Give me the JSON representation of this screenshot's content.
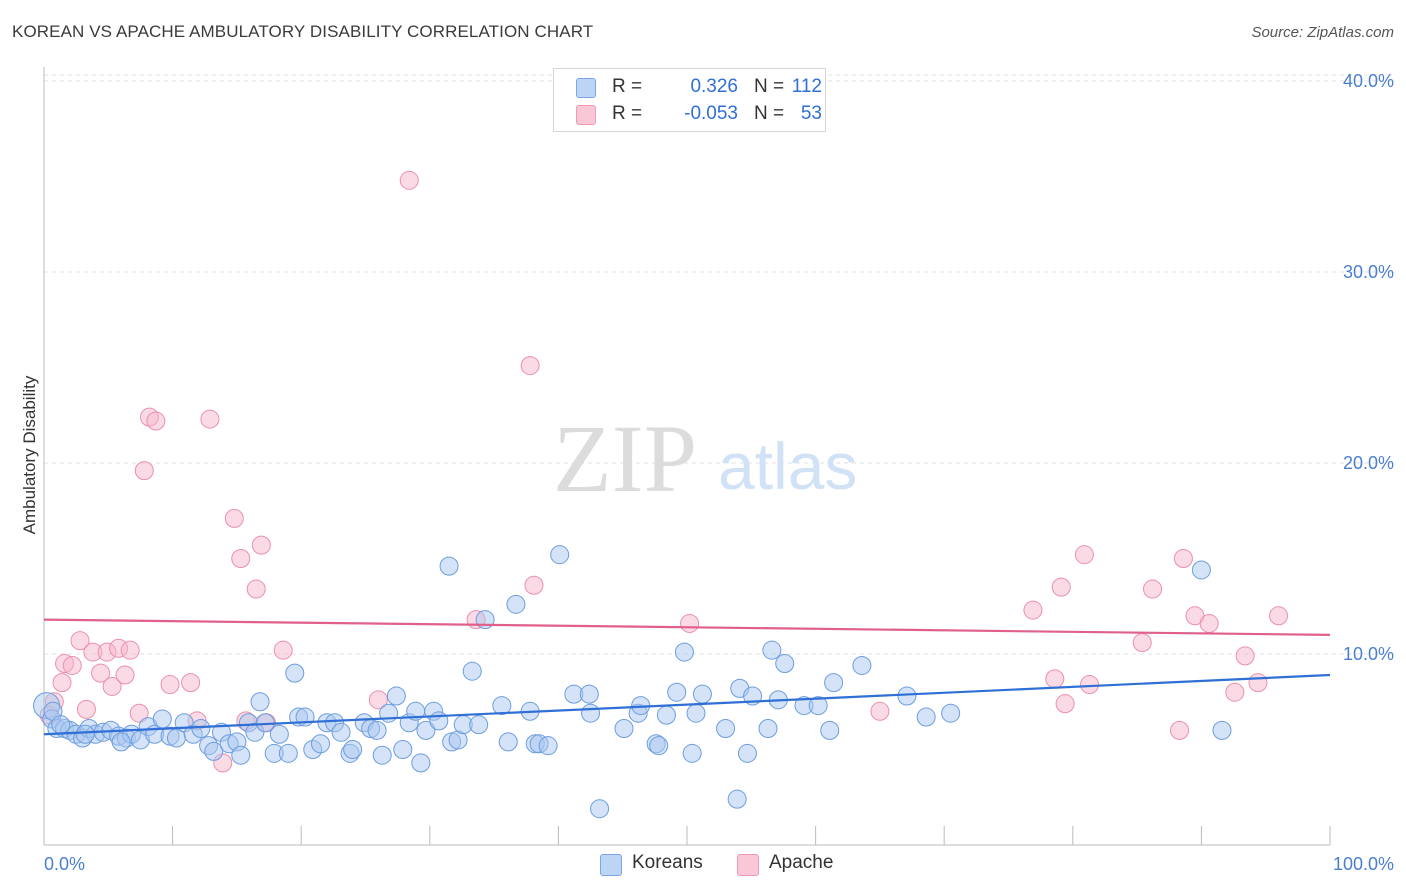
{
  "header": {
    "title": "KOREAN VS APACHE AMBULATORY DISABILITY CORRELATION CHART",
    "source": "Source: ZipAtlas.com"
  },
  "watermark": {
    "zip": "ZIP",
    "atlas": "atlas"
  },
  "legend_top": {
    "rows": [
      {
        "r_label": "R =",
        "r_value": "0.326",
        "n_label": "N =",
        "n_value": "112"
      },
      {
        "r_label": "R =",
        "r_value": "-0.053",
        "n_label": "N =",
        "n_value": "53"
      }
    ]
  },
  "legend_bottom": {
    "items": [
      "Koreans",
      "Apache"
    ]
  },
  "colors": {
    "koreans_fill": "#a9c8f0",
    "koreans_stroke": "#6d9de0",
    "koreans_line": "#2f6fd6",
    "apache_fill": "#f6b8cb",
    "apache_stroke": "#ec8fab",
    "apache_line": "#e0608b",
    "grid": "#e2e2e2",
    "tick_text": "#4a7fd0"
  },
  "chart_data": {
    "type": "scatter",
    "title": "KOREAN VS APACHE AMBULATORY DISABILITY CORRELATION CHART",
    "xlabel": "",
    "ylabel": "Ambulatory Disability",
    "xlim": [
      0,
      100
    ],
    "ylim": [
      0,
      42
    ],
    "x_tick_labels": [
      "0.0%",
      "100.0%"
    ],
    "y_ticks": [
      10,
      20,
      30,
      40
    ],
    "y_tick_labels": [
      "10.0%",
      "20.0%",
      "30.0%",
      "40.0%"
    ],
    "grid": "horizontal dashed",
    "legend_position": "top-center and bottom",
    "series": [
      {
        "name": "Koreans",
        "r": 0.326,
        "n": 112,
        "trend": {
          "x": [
            0,
            100
          ],
          "y": [
            5.8,
            8.9
          ]
        },
        "points": [
          [
            0.2,
            7.3
          ],
          [
            0.6,
            6.6
          ],
          [
            1.0,
            6.1
          ],
          [
            1.6,
            6.1
          ],
          [
            2.0,
            6.0
          ],
          [
            2.5,
            5.8
          ],
          [
            3.0,
            5.6
          ],
          [
            3.5,
            6.1
          ],
          [
            4.0,
            5.8
          ],
          [
            4.6,
            5.9
          ],
          [
            5.2,
            6.0
          ],
          [
            5.8,
            5.7
          ],
          [
            6.4,
            5.6
          ],
          [
            6.8,
            5.8
          ],
          [
            7.5,
            5.5
          ],
          [
            8.1,
            6.2
          ],
          [
            8.6,
            5.8
          ],
          [
            9.2,
            6.6
          ],
          [
            9.8,
            5.7
          ],
          [
            10.3,
            5.6
          ],
          [
            10.9,
            6.4
          ],
          [
            11.6,
            5.8
          ],
          [
            12.2,
            6.1
          ],
          [
            12.8,
            5.2
          ],
          [
            13.2,
            4.9
          ],
          [
            13.8,
            5.9
          ],
          [
            14.4,
            5.3
          ],
          [
            15.0,
            5.4
          ],
          [
            15.3,
            4.7
          ],
          [
            15.9,
            6.4
          ],
          [
            16.4,
            5.9
          ],
          [
            16.8,
            7.5
          ],
          [
            17.2,
            6.4
          ],
          [
            17.9,
            4.8
          ],
          [
            18.3,
            5.8
          ],
          [
            19.0,
            4.8
          ],
          [
            19.5,
            9.0
          ],
          [
            19.8,
            6.7
          ],
          [
            20.3,
            6.7
          ],
          [
            20.9,
            5.0
          ],
          [
            21.5,
            5.3
          ],
          [
            22.0,
            6.4
          ],
          [
            22.6,
            6.4
          ],
          [
            23.1,
            5.9
          ],
          [
            23.8,
            4.8
          ],
          [
            24.0,
            5.0
          ],
          [
            24.9,
            6.4
          ],
          [
            25.4,
            6.1
          ],
          [
            25.9,
            6.0
          ],
          [
            26.3,
            4.7
          ],
          [
            26.8,
            6.9
          ],
          [
            27.4,
            7.8
          ],
          [
            27.9,
            5.0
          ],
          [
            28.4,
            6.4
          ],
          [
            28.9,
            7.0
          ],
          [
            29.3,
            4.3
          ],
          [
            29.7,
            6.0
          ],
          [
            30.3,
            7.0
          ],
          [
            30.7,
            6.5
          ],
          [
            31.7,
            5.4
          ],
          [
            31.5,
            14.6
          ],
          [
            32.2,
            5.5
          ],
          [
            32.6,
            6.3
          ],
          [
            33.3,
            9.1
          ],
          [
            33.8,
            6.3
          ],
          [
            34.3,
            11.8
          ],
          [
            35.6,
            7.3
          ],
          [
            36.1,
            5.4
          ],
          [
            37.8,
            7.0
          ],
          [
            38.2,
            5.3
          ],
          [
            38.5,
            5.3
          ],
          [
            39.2,
            5.2
          ],
          [
            36.7,
            12.6
          ],
          [
            40.1,
            15.2
          ],
          [
            41.2,
            7.9
          ],
          [
            42.5,
            6.9
          ],
          [
            42.4,
            7.9
          ],
          [
            43.2,
            1.9
          ],
          [
            45.1,
            6.1
          ],
          [
            46.2,
            6.9
          ],
          [
            46.4,
            7.3
          ],
          [
            47.6,
            5.3
          ],
          [
            47.8,
            5.2
          ],
          [
            48.4,
            6.8
          ],
          [
            49.2,
            8.0
          ],
          [
            49.8,
            10.1
          ],
          [
            50.4,
            4.8
          ],
          [
            50.7,
            6.9
          ],
          [
            51.2,
            7.9
          ],
          [
            53.0,
            6.1
          ],
          [
            53.9,
            2.4
          ],
          [
            54.1,
            8.2
          ],
          [
            54.7,
            4.8
          ],
          [
            55.1,
            7.8
          ],
          [
            56.3,
            6.1
          ],
          [
            56.6,
            10.2
          ],
          [
            57.1,
            7.6
          ],
          [
            57.6,
            9.5
          ],
          [
            59.1,
            7.3
          ],
          [
            60.2,
            7.3
          ],
          [
            61.1,
            6.0
          ],
          [
            61.4,
            8.5
          ],
          [
            63.6,
            9.4
          ],
          [
            67.1,
            7.8
          ],
          [
            68.6,
            6.7
          ],
          [
            70.5,
            6.9
          ],
          [
            90.0,
            14.4
          ],
          [
            91.6,
            6.0
          ],
          [
            0.7,
            7.0
          ],
          [
            1.3,
            6.3
          ],
          [
            3.2,
            5.8
          ],
          [
            6.0,
            5.4
          ]
        ]
      },
      {
        "name": "Apache",
        "r": -0.053,
        "n": 53,
        "trend": {
          "x": [
            0,
            100
          ],
          "y": [
            11.8,
            11.0
          ]
        },
        "points": [
          [
            0.4,
            6.8
          ],
          [
            0.8,
            7.5
          ],
          [
            1.4,
            8.5
          ],
          [
            1.6,
            9.5
          ],
          [
            2.2,
            9.4
          ],
          [
            2.8,
            10.7
          ],
          [
            3.3,
            7.1
          ],
          [
            3.8,
            10.1
          ],
          [
            4.4,
            9.0
          ],
          [
            4.9,
            10.1
          ],
          [
            5.3,
            8.3
          ],
          [
            5.8,
            10.3
          ],
          [
            6.3,
            8.9
          ],
          [
            6.7,
            10.2
          ],
          [
            7.4,
            6.9
          ],
          [
            7.8,
            19.6
          ],
          [
            8.2,
            22.4
          ],
          [
            8.7,
            22.2
          ],
          [
            9.8,
            8.4
          ],
          [
            11.4,
            8.5
          ],
          [
            11.9,
            6.5
          ],
          [
            12.9,
            22.3
          ],
          [
            13.9,
            4.3
          ],
          [
            14.8,
            17.1
          ],
          [
            15.3,
            15.0
          ],
          [
            15.7,
            6.5
          ],
          [
            16.5,
            13.4
          ],
          [
            16.9,
            15.7
          ],
          [
            17.3,
            6.4
          ],
          [
            18.6,
            10.2
          ],
          [
            26.0,
            7.6
          ],
          [
            28.4,
            34.8
          ],
          [
            33.6,
            11.8
          ],
          [
            37.8,
            25.1
          ],
          [
            38.1,
            13.6
          ],
          [
            50.2,
            11.6
          ],
          [
            65.0,
            7.0
          ],
          [
            76.9,
            12.3
          ],
          [
            78.6,
            8.7
          ],
          [
            79.1,
            13.5
          ],
          [
            79.4,
            7.4
          ],
          [
            80.9,
            15.2
          ],
          [
            81.3,
            8.4
          ],
          [
            85.4,
            10.6
          ],
          [
            86.2,
            13.4
          ],
          [
            88.3,
            6.0
          ],
          [
            88.6,
            15.0
          ],
          [
            89.5,
            12.0
          ],
          [
            90.6,
            11.6
          ],
          [
            92.6,
            8.0
          ],
          [
            93.4,
            9.9
          ],
          [
            94.4,
            8.5
          ],
          [
            96.0,
            12.0
          ]
        ]
      }
    ]
  }
}
